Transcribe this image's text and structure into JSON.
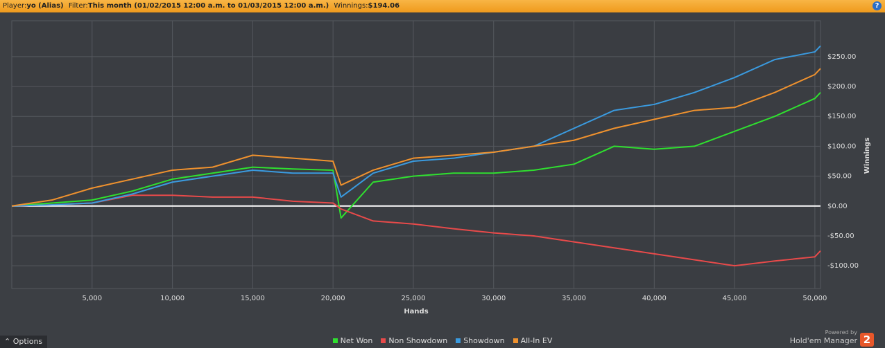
{
  "header": {
    "player_label": "Player:",
    "player": "yo (Alias)",
    "filter_label": "Filter:",
    "filter": "This month (01/02/2015 12:00 a.m. to 01/03/2015 12:00 a.m.)",
    "winnings_label": "Winnings:",
    "winnings": "$194.06",
    "help": "?"
  },
  "chart_data": {
    "type": "line",
    "x_label": "Hands",
    "y_label": "Winnings",
    "x": [
      0,
      2500,
      5000,
      7500,
      10000,
      12500,
      15000,
      17500,
      20000,
      20500,
      22500,
      25000,
      27500,
      30000,
      32500,
      35000,
      37500,
      40000,
      42500,
      45000,
      47500,
      50000,
      50350
    ],
    "series": [
      {
        "name": "Net Won",
        "color": "#2fe02f",
        "values": [
          0,
          5,
          10,
          25,
          45,
          55,
          65,
          62,
          60,
          -20,
          40,
          50,
          55,
          55,
          60,
          70,
          100,
          95,
          100,
          125,
          150,
          180,
          190
        ]
      },
      {
        "name": "Non Showdown",
        "color": "#e84a4a",
        "values": [
          0,
          2,
          5,
          18,
          18,
          15,
          15,
          8,
          5,
          -5,
          -25,
          -30,
          -38,
          -45,
          -50,
          -60,
          -70,
          -80,
          -90,
          -100,
          -92,
          -85,
          -75
        ]
      },
      {
        "name": "Showdown",
        "color": "#3a9be0",
        "values": [
          0,
          2,
          5,
          20,
          40,
          50,
          60,
          55,
          55,
          15,
          55,
          75,
          80,
          90,
          100,
          130,
          160,
          170,
          190,
          215,
          245,
          258,
          268
        ]
      },
      {
        "name": "All-In EV",
        "color": "#f0922e",
        "values": [
          0,
          10,
          30,
          45,
          60,
          65,
          85,
          80,
          75,
          35,
          60,
          80,
          85,
          90,
          100,
          110,
          130,
          145,
          160,
          165,
          190,
          220,
          230
        ]
      }
    ],
    "xlim": [
      0,
      50350
    ],
    "xticks": [
      {
        "value": 5000,
        "label": "5,000"
      },
      {
        "value": 10000,
        "label": "10,000"
      },
      {
        "value": 15000,
        "label": "15,000"
      },
      {
        "value": 20000,
        "label": "20,000"
      },
      {
        "value": 25000,
        "label": "25,000"
      },
      {
        "value": 30000,
        "label": "30,000"
      },
      {
        "value": 35000,
        "label": "35,000"
      },
      {
        "value": 40000,
        "label": "40,000"
      },
      {
        "value": 45000,
        "label": "45,000"
      },
      {
        "value": 50000,
        "label": "50,000"
      }
    ],
    "ylim": [
      -138,
      310
    ],
    "yticks": [
      {
        "value": -100,
        "label": "-$100.00"
      },
      {
        "value": -50,
        "label": "-$50.00"
      },
      {
        "value": 0,
        "label": "$0.00"
      },
      {
        "value": 50,
        "label": "$50.00"
      },
      {
        "value": 100,
        "label": "$100.00"
      },
      {
        "value": 150,
        "label": "$150.00"
      },
      {
        "value": 200,
        "label": "$200.00"
      },
      {
        "value": 250,
        "label": "$250.00"
      }
    ],
    "grid": true,
    "legend": "bottom"
  },
  "footer": {
    "options": "Options",
    "powered_by": "Powered by",
    "brand": "Hold'em Manager",
    "brand_number": "2"
  }
}
